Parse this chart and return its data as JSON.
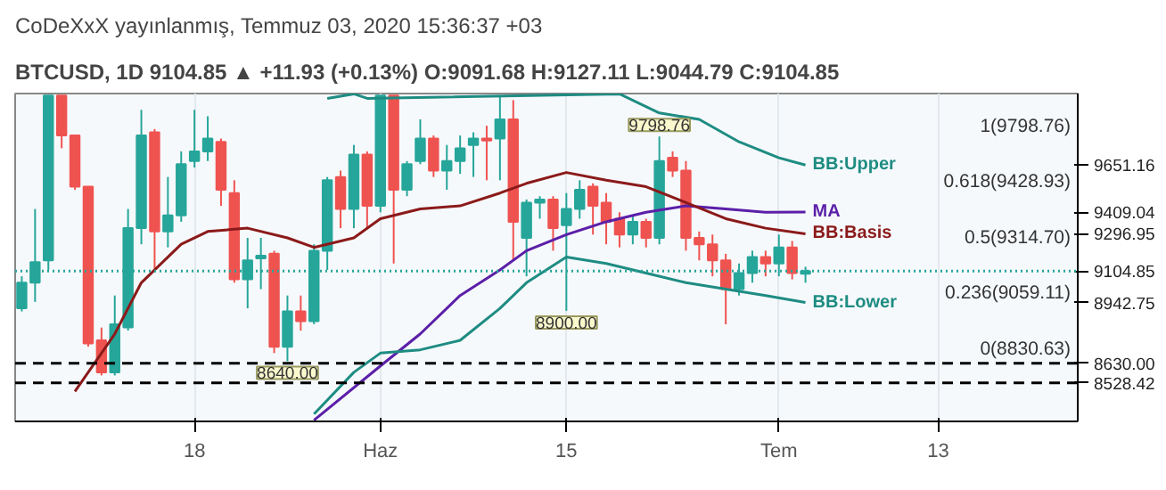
{
  "chart_data": {
    "type": "candlestick",
    "title": "CoDeXxX yayınlanmış, Temmuz 03, 2020 15:36:37 +03",
    "subtitle": "BTCUSD, 1D 9104.85 ▲ +11.93 (+0.13%) O:9091.68 H:9127.11 L:9044.79 C:9104.85",
    "x": [
      "2020-05-05",
      "2020-05-06",
      "2020-05-07",
      "2020-05-08",
      "2020-05-09",
      "2020-05-10",
      "2020-05-11",
      "2020-05-12",
      "2020-05-13",
      "2020-05-14",
      "2020-05-15",
      "2020-05-16",
      "2020-05-17",
      "2020-05-18",
      "2020-05-19",
      "2020-05-20",
      "2020-05-21",
      "2020-05-22",
      "2020-05-23",
      "2020-05-24",
      "2020-05-25",
      "2020-05-26",
      "2020-05-27",
      "2020-05-28",
      "2020-05-29",
      "2020-05-30",
      "2020-05-31",
      "2020-06-01",
      "2020-06-02",
      "2020-06-03",
      "2020-06-04",
      "2020-06-05",
      "2020-06-06",
      "2020-06-07",
      "2020-06-08",
      "2020-06-09",
      "2020-06-10",
      "2020-06-11",
      "2020-06-12",
      "2020-06-13",
      "2020-06-14",
      "2020-06-15",
      "2020-06-16",
      "2020-06-17",
      "2020-06-18",
      "2020-06-19",
      "2020-06-20",
      "2020-06-21",
      "2020-06-22",
      "2020-06-23",
      "2020-06-24",
      "2020-06-25",
      "2020-06-26",
      "2020-06-27",
      "2020-06-28",
      "2020-06-29",
      "2020-06-30",
      "2020-07-01",
      "2020-07-02",
      "2020-07-03"
    ],
    "ohlc": [
      [
        8913,
        9078,
        8897,
        9045
      ],
      [
        9045,
        9425,
        8946,
        9151
      ],
      [
        9160,
        10010,
        9111,
        10010
      ],
      [
        10010,
        10010,
        9738,
        9804
      ],
      [
        9804,
        9804,
        9524,
        9540
      ],
      [
        9540,
        9540,
        8715,
        8732
      ],
      [
        8748,
        8814,
        8567,
        8583
      ],
      [
        8583,
        8979,
        8567,
        8831
      ],
      [
        8814,
        9425,
        8798,
        9326
      ],
      [
        9326,
        9936,
        9243,
        9804
      ],
      [
        9820,
        9837,
        9111,
        9309
      ],
      [
        9309,
        9590,
        9227,
        9392
      ],
      [
        9392,
        9722,
        9359,
        9656
      ],
      [
        9672,
        9936,
        9639,
        9722
      ],
      [
        9722,
        9903,
        9672,
        9788
      ],
      [
        9771,
        9788,
        9441,
        9524
      ],
      [
        9507,
        9573,
        9045,
        9062
      ],
      [
        9062,
        9276,
        8913,
        9160
      ],
      [
        9170,
        9276,
        9012,
        9184
      ],
      [
        9194,
        9210,
        8682,
        8715
      ],
      [
        8715,
        8979,
        8640,
        8897
      ],
      [
        8897,
        8979,
        8798,
        8847
      ],
      [
        8847,
        9243,
        8831,
        9210
      ],
      [
        9210,
        9590,
        9111,
        9573
      ],
      [
        9590,
        9623,
        9326,
        9425
      ],
      [
        9425,
        9755,
        9326,
        9705
      ],
      [
        9705,
        9722,
        9326,
        9441
      ],
      [
        9441,
        10010,
        9408,
        10010
      ],
      [
        10010,
        10010,
        9144,
        9524
      ],
      [
        9524,
        9672,
        9491,
        9656
      ],
      [
        9672,
        9887,
        9656,
        9788
      ],
      [
        9788,
        9804,
        9590,
        9623
      ],
      [
        9623,
        9755,
        9524,
        9672
      ],
      [
        9672,
        9804,
        9606,
        9738
      ],
      [
        9755,
        9820,
        9590,
        9788
      ],
      [
        9788,
        9854,
        9573,
        9778
      ],
      [
        9788,
        10002,
        9573,
        9887
      ],
      [
        9887,
        9986,
        9160,
        9359
      ],
      [
        9276,
        9474,
        9078,
        9458
      ],
      [
        9458,
        9491,
        9375,
        9474
      ],
      [
        9474,
        9491,
        9210,
        9326
      ],
      [
        9342,
        9507,
        8900,
        9425
      ],
      [
        9425,
        9573,
        9375,
        9524
      ],
      [
        9540,
        9557,
        9293,
        9441
      ],
      [
        9458,
        9507,
        9243,
        9359
      ],
      [
        9375,
        9408,
        9227,
        9293
      ],
      [
        9293,
        9392,
        9243,
        9359
      ],
      [
        9359,
        9375,
        9227,
        9276
      ],
      [
        9276,
        9798.76,
        9243,
        9672
      ],
      [
        9689,
        9722,
        9590,
        9623
      ],
      [
        9623,
        9672,
        9210,
        9276
      ],
      [
        9276,
        9309,
        9160,
        9243
      ],
      [
        9243,
        9293,
        9078,
        9160
      ],
      [
        9160,
        9194,
        8830.63,
        9012
      ],
      [
        9012,
        9144,
        8979,
        9095
      ],
      [
        9095,
        9210,
        9045,
        9177
      ],
      [
        9177,
        9210,
        9078,
        9144
      ],
      [
        9144,
        9293,
        9078,
        9227
      ],
      [
        9227,
        9260,
        9062,
        9095
      ],
      [
        9091.68,
        9127.11,
        9044.79,
        9104.85
      ]
    ],
    "colors": [
      "#26a69a",
      "#26a69a",
      "#26a69a",
      "#ef5350",
      "#ef5350",
      "#ef5350",
      "#ef5350",
      "#26a69a",
      "#26a69a",
      "#26a69a",
      "#ef5350",
      "#26a69a",
      "#26a69a",
      "#26a69a",
      "#26a69a",
      "#ef5350",
      "#ef5350",
      "#26a69a",
      "#26a69a",
      "#ef5350",
      "#26a69a",
      "#ef5350",
      "#26a69a",
      "#26a69a",
      "#ef5350",
      "#26a69a",
      "#ef5350",
      "#26a69a",
      "#ef5350",
      "#26a69a",
      "#26a69a",
      "#ef5350",
      "#26a69a",
      "#26a69a",
      "#26a69a",
      "#ef5350",
      "#26a69a",
      "#ef5350",
      "#26a69a",
      "#26a69a",
      "#ef5350",
      "#26a69a",
      "#26a69a",
      "#ef5350",
      "#ef5350",
      "#ef5350",
      "#26a69a",
      "#ef5350",
      "#26a69a",
      "#ef5350",
      "#ef5350",
      "#ef5350",
      "#ef5350",
      "#ef5350",
      "#26a69a",
      "#26a69a",
      "#ef5350",
      "#26a69a",
      "#ef5350",
      "#26a69a"
    ],
    "series": [
      {
        "name": "BB:Upper",
        "type": "line",
        "color": "#1e8c82",
        "x": [
          "2020-05-28",
          "2020-05-30",
          "2020-05-31",
          "2020-06-19",
          "2020-06-22",
          "2020-06-25",
          "2020-06-28",
          "2020-07-01",
          "2020-07-03"
        ],
        "values": [
          9995,
          10018,
          9995,
          10018,
          9920,
          9887,
          9771,
          9689,
          9651.16
        ]
      },
      {
        "name": "MA",
        "type": "line",
        "color": "#5b1fa8",
        "x": [
          "2020-05-27",
          "2020-06-01",
          "2020-06-04",
          "2020-06-07",
          "2020-06-10",
          "2020-06-12",
          "2020-06-15",
          "2020-06-18",
          "2020-06-21",
          "2020-06-24",
          "2020-06-27",
          "2020-06-30",
          "2020-07-03"
        ],
        "values": [
          8336,
          8616,
          8781,
          8979,
          9111,
          9210,
          9293,
          9359,
          9408,
          9441,
          9425,
          9408,
          9409.04
        ]
      },
      {
        "name": "BB:Basis",
        "type": "line",
        "color": "#8b1a1a",
        "x": [
          "2020-05-09",
          "2020-05-12",
          "2020-05-14",
          "2020-05-17",
          "2020-05-19",
          "2020-05-22",
          "2020-05-25",
          "2020-05-27",
          "2020-05-30",
          "2020-06-01",
          "2020-06-04",
          "2020-06-07",
          "2020-06-10",
          "2020-06-12",
          "2020-06-15",
          "2020-06-18",
          "2020-06-21",
          "2020-06-24",
          "2020-06-27",
          "2020-06-30",
          "2020-07-03"
        ],
        "values": [
          8484,
          8781,
          9045,
          9243,
          9309,
          9326,
          9276,
          9227,
          9276,
          9375,
          9425,
          9441,
          9507,
          9557,
          9613,
          9573,
          9540,
          9458,
          9375,
          9326,
          9296.95
        ]
      },
      {
        "name": "BB:Lower",
        "type": "line",
        "color": "#1e8c82",
        "x": [
          "2020-05-27",
          "2020-05-30",
          "2020-06-01",
          "2020-06-04",
          "2020-06-07",
          "2020-06-10",
          "2020-06-12",
          "2020-06-15",
          "2020-06-18",
          "2020-06-21",
          "2020-06-24",
          "2020-06-27",
          "2020-06-30",
          "2020-07-03"
        ],
        "values": [
          8368,
          8583,
          8682,
          8699,
          8748,
          8913,
          9045,
          9177,
          9144,
          9095,
          9045,
          9012,
          8979,
          8942.75
        ]
      }
    ],
    "xlim": [
      "2020-05-04T12:00",
      "2020-07-23T12:00"
    ],
    "ylim": [
      8330,
      10020
    ],
    "yticks": [
      9651.16,
      9409.04,
      9296.95,
      9104.85,
      8942.75,
      {
        "value": 8630,
        "label": "8630.00"
      },
      8528.42
    ],
    "xticks": [
      {
        "value": "2020-05-18",
        "label": "18"
      },
      {
        "value": "2020-06-01",
        "label": "Haz"
      },
      {
        "value": "2020-06-15",
        "label": "15"
      },
      {
        "value": "2020-07-01",
        "label": "Tem"
      },
      {
        "value": "2020-07-13",
        "label": "13"
      }
    ],
    "ref_lines": [
      {
        "axis": "y",
        "value": 9104.85,
        "color": "#26a69a",
        "line_style": "dotted"
      },
      {
        "axis": "y",
        "value": 8630.0,
        "color": "#000000",
        "line_style": "dashed"
      },
      {
        "axis": "y",
        "value": 8528.42,
        "color": "#000000",
        "line_style": "dashed"
      }
    ],
    "annotations": [
      "1(9798.76)",
      "0.618(9428.93)",
      "0.5(9314.70)",
      "0.236(9059.11)",
      "0(8830.63)",
      {
        "text": "9798.76",
        "x": "2020-06-22",
        "y": 9798.76
      },
      {
        "text": "8640.00",
        "x": "2020-05-25",
        "y": 8640
      },
      {
        "text": "8900.00",
        "x": "2020-06-15",
        "y": 8900
      }
    ],
    "grid": "x"
  }
}
